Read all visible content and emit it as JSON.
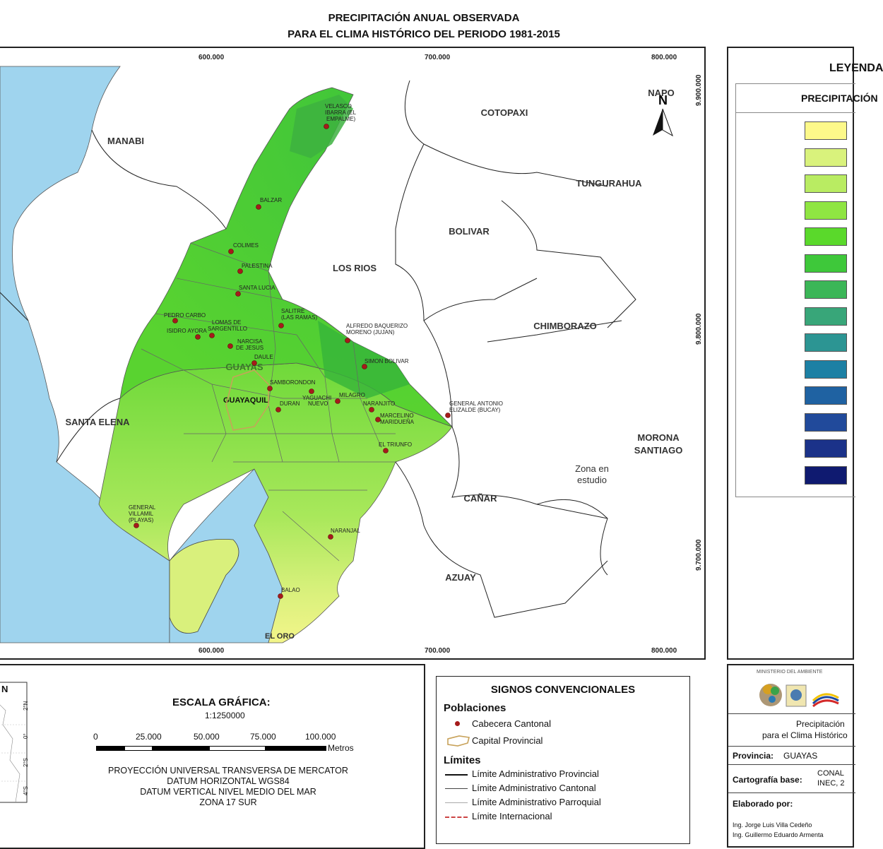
{
  "title": {
    "line1": "PRECIPITACIÓN ANUAL OBSERVADA",
    "line2": "PARA EL CLIMA HISTÓRICO DEL PERIODO 1981-2015"
  },
  "map": {
    "x_ticks": [
      "600.000",
      "700.000",
      "800.000"
    ],
    "y_ticks": [
      "9.900.000",
      "9.800.000",
      "9.700.000"
    ],
    "north_label": "N",
    "provinces": {
      "manabi": "MANABI",
      "santa_elena": "SANTA ELENA",
      "los_rios": "LOS RIOS",
      "cotopaxi": "COTOPAXI",
      "napo": "NAPO",
      "tungurahua": "TUNGURAHUA",
      "bolivar": "BOLIVAR",
      "chimborazo": "CHIMBORAZO",
      "morona1": "MORONA",
      "morona2": "SANTIAGO",
      "canar": "CAÑAR",
      "azuay": "AZUAY",
      "zona1": "Zona en",
      "zona2": "estudio",
      "el_oro": "EL ORO",
      "guayas": "GUAYAS",
      "guayaquil": "GUAYAQUIL"
    },
    "cities": {
      "velasco1": "VELASCO",
      "velasco2": "IBARRA (EL",
      "velasco3": "EMPALME)",
      "balzar": "BALZAR",
      "colimes": "COLIMES",
      "palestina": "PALESTINA",
      "santa_lucia": "SANTA LUCIA",
      "pedro_carbo": "PEDRO CARBO",
      "isidro_ayora": "ISIDRO AYORA",
      "lomas1": "LOMAS DE",
      "lomas2": "SARGENTILLO",
      "narcisa1": "NARCISA",
      "narcisa2": "DE JESUS",
      "salitre1": "SALITRE",
      "salitre2": "(LAS RAMAS)",
      "daule": "DAULE",
      "alfredo1": "ALFREDO BAQUERIZO",
      "alfredo2": "MORENO (JUJAN)",
      "simon_bolivar": "SIMON BOLIVAR",
      "samborondon": "SAMBORONDON",
      "yaguachi1": "YAGUACHI",
      "yaguachi2": "NUEVO",
      "milagro": "MILAGRO",
      "duran": "DURAN",
      "naranjito": "NARANJITO",
      "marcelino1": "MARCELINO",
      "marcelino2": "MARIDUEÑA",
      "bucay1": "GENERAL ANTONIO",
      "bucay2": "ELIZALDE (BUCAY)",
      "el_triunfo": "EL TRIUNFO",
      "playas1": "GENERAL",
      "playas2": "VILLAMIL",
      "playas3": "(PLAYAS)",
      "naranjal": "NARANJAL",
      "balao": "BALAO"
    }
  },
  "legend": {
    "title": "LEYENDA",
    "subtitle": "PRECIPITACIÓN",
    "colors": [
      "#fdf98a",
      "#d9f27c",
      "#b9ec62",
      "#8fe542",
      "#5ad92b",
      "#3ec83a",
      "#3bb657",
      "#38a679",
      "#2c9593",
      "#1c80a4",
      "#1f62a2",
      "#214a9b",
      "#1b3289",
      "#0f1a70"
    ]
  },
  "scale": {
    "inset_north": "N",
    "inset_lat": [
      "2°N",
      "0°",
      "2°S",
      "4°S"
    ],
    "title": "ESCALA GRÁFICA:",
    "ratio": "1:1250000",
    "ticks": [
      "0",
      "25.000",
      "50.000",
      "75.000",
      "100.000"
    ],
    "unit": "Metros",
    "proj1": "PROYECCIÓN UNIVERSAL TRANSVERSA DE MERCATOR",
    "proj2": "DATUM HORIZONTAL WGS84",
    "proj3": "DATUM VERTICAL NIVEL MEDIO DEL MAR",
    "proj4": "ZONA 17 SUR"
  },
  "signs": {
    "title": "SIGNOS CONVENCIONALES",
    "poblaciones": "Poblaciones",
    "cabecera": "Cabecera Cantonal",
    "capital": "Capital Provincial",
    "limites": "Límites",
    "lim_prov": "Límite Administrativo Provincial",
    "lim_cant": "Límite Administrativo Cantonal",
    "lim_parr": "Límite Administrativo Parroquial",
    "lim_int": "Límite Internacional"
  },
  "info": {
    "ministry": "MINISTERIO DEL AMBIENTE",
    "desc1": "Precipitación",
    "desc2": "para el Clima Histórico",
    "prov_label": "Provincia:",
    "prov_value": "GUAYAS",
    "cart_label": "Cartografía base:",
    "cart_value1": "CONAL",
    "cart_value2": "INEC, 2",
    "elab_label": "Elaborado por:",
    "author1": "Ing. Jorge Luis Villa Cedeño",
    "author2": "Ing. Guillermo Eduardo Armenta"
  }
}
